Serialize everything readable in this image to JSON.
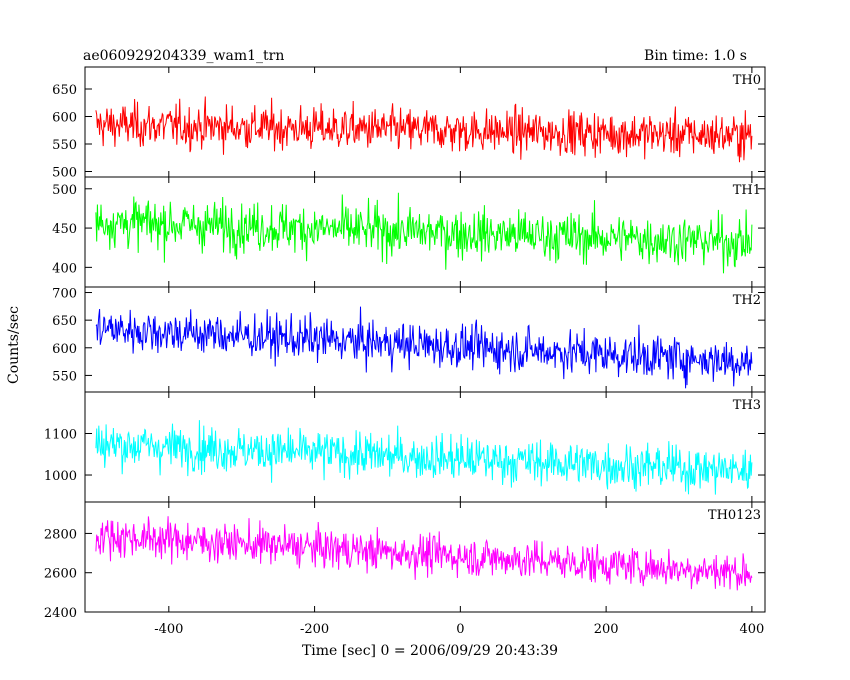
{
  "chart_data": {
    "type": "line",
    "title_left": "ae060929204339_wam1_trn",
    "title_right": "Bin time: 1.0 s",
    "xlabel": "Time [sec] 0 = 2006/09/29 20:43:39",
    "ylabel": "Counts/sec",
    "xlim": [
      -515,
      418
    ],
    "x_ticks": [
      -400,
      -200,
      0,
      200,
      400
    ],
    "x_range": [
      -500,
      400
    ],
    "grid": false,
    "panels": [
      {
        "name": "TH0",
        "color": "#ff0000",
        "ylim": [
          490,
          690
        ],
        "y_ticks": [
          500,
          550,
          600,
          650
        ],
        "x_start": -500,
        "x_end": 400,
        "start": 585,
        "end": 565,
        "noise": 28
      },
      {
        "name": "TH1",
        "color": "#00ff00",
        "ylim": [
          375,
          515
        ],
        "y_ticks": [
          400,
          450,
          500
        ],
        "x_start": -500,
        "x_end": 400,
        "start": 458,
        "end": 432,
        "noise": 22
      },
      {
        "name": "TH2",
        "color": "#0000ff",
        "ylim": [
          520,
          710
        ],
        "y_ticks": [
          550,
          600,
          650,
          700
        ],
        "x_start": -500,
        "x_end": 400,
        "start": 635,
        "end": 575,
        "noise": 28
      },
      {
        "name": "TH3",
        "color": "#00ffff",
        "ylim": [
          935,
          1200
        ],
        "y_ticks": [
          1000,
          1100
        ],
        "x_start": -500,
        "x_end": 400,
        "start": 1075,
        "end": 1010,
        "noise": 38
      },
      {
        "name": "TH0123",
        "color": "#ff00ff",
        "ylim": [
          2400,
          2960
        ],
        "y_ticks": [
          2400,
          2600,
          2800
        ],
        "x_start": -500,
        "x_end": 400,
        "start": 2790,
        "end": 2600,
        "noise": 70
      }
    ]
  }
}
